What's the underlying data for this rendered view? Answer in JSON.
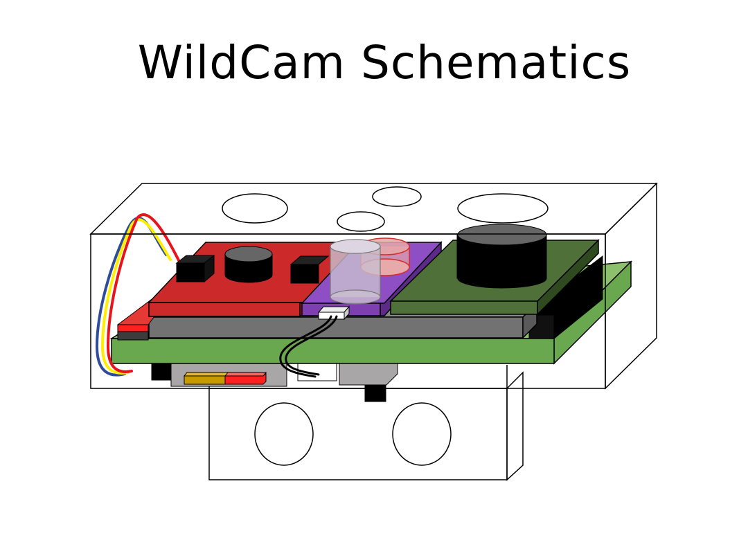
{
  "title": "WildCam Schematics",
  "colors": {
    "background": "#ffffff",
    "outline": "#000000",
    "red_board": "#d32f2f",
    "purple_board": "#7e3fb0",
    "green_board": "#4f7038",
    "base_board": "#6aa84f",
    "gray_board": "#727272",
    "battery_yellow": "#c79a00",
    "battery_red": "#ff2020",
    "wire_red": "#e8141b",
    "wire_yellow": "#ffee00",
    "wire_blue": "#2e4c9a"
  }
}
